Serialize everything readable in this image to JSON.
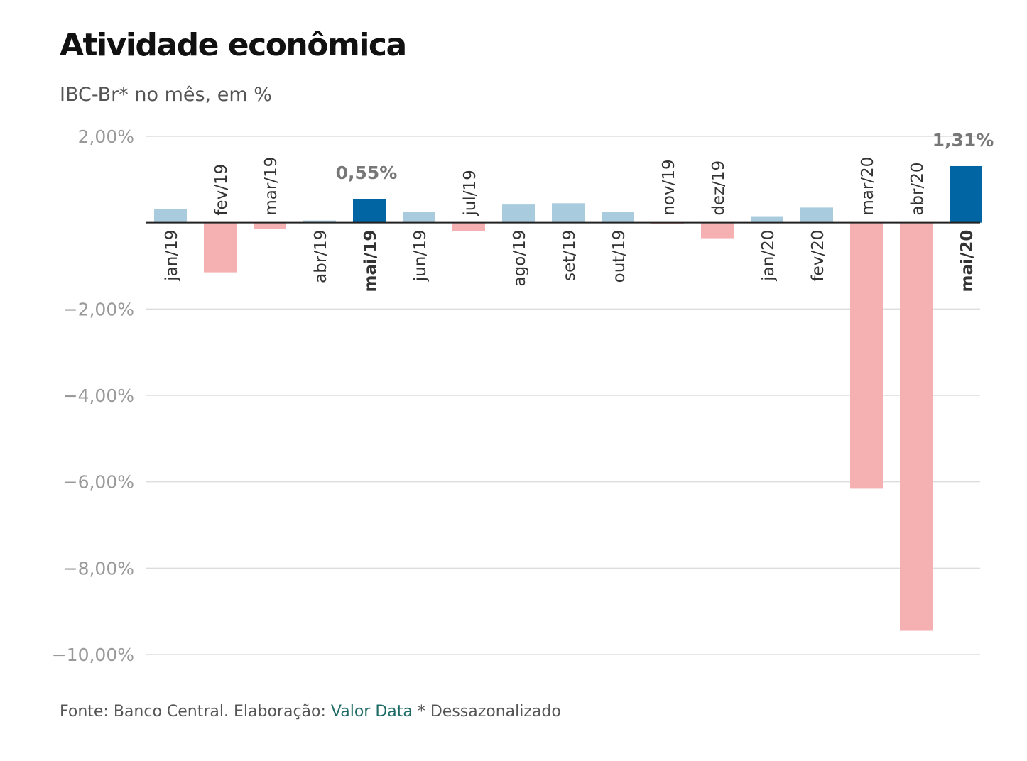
{
  "title": "Atividade econômica",
  "subtitle": "IBC-Br* no mês, em %",
  "footer": {
    "prefix": "Fonte: Banco Central. Elaboração: ",
    "link": "Valor Data",
    "suffix": " * Dessazonalizado"
  },
  "colors": {
    "positive": "#a8cbde",
    "negative": "#f5b0b2",
    "highlight": "#0065a2",
    "axis": "#222222",
    "grid": "#dddddd",
    "tick_text": "#999999",
    "label_text": "#333333",
    "annotation_text": "#777777"
  },
  "chart_data": {
    "type": "bar",
    "title": "Atividade econômica",
    "subtitle": "IBC-Br* no mês, em %",
    "categories": [
      "jan/19",
      "fev/19",
      "mar/19",
      "abr/19",
      "mai/19",
      "jun/19",
      "jul/19",
      "ago/19",
      "set/19",
      "out/19",
      "nov/19",
      "dez/19",
      "jan/20",
      "fev/20",
      "mar/20",
      "abr/20",
      "mai/20"
    ],
    "values": [
      0.32,
      -1.15,
      -0.14,
      0.05,
      0.55,
      0.25,
      -0.2,
      0.42,
      0.45,
      0.25,
      -0.02,
      -0.36,
      0.15,
      0.35,
      -6.16,
      -9.45,
      1.31
    ],
    "highlight": [
      "mai/19",
      "mai/20"
    ],
    "annotations": [
      {
        "category": "mai/19",
        "text": "0,55%"
      },
      {
        "category": "mai/20",
        "text": "1,31%"
      }
    ],
    "yticks": [
      2,
      -2,
      -4,
      -6,
      -8,
      -10
    ],
    "ytick_labels": [
      "2,00%",
      "−2,00%",
      "−4,00%",
      "−6,00%",
      "−8,00%",
      "−10,00%"
    ],
    "ylim": [
      -10,
      2
    ],
    "grid": true,
    "legend": "none"
  }
}
